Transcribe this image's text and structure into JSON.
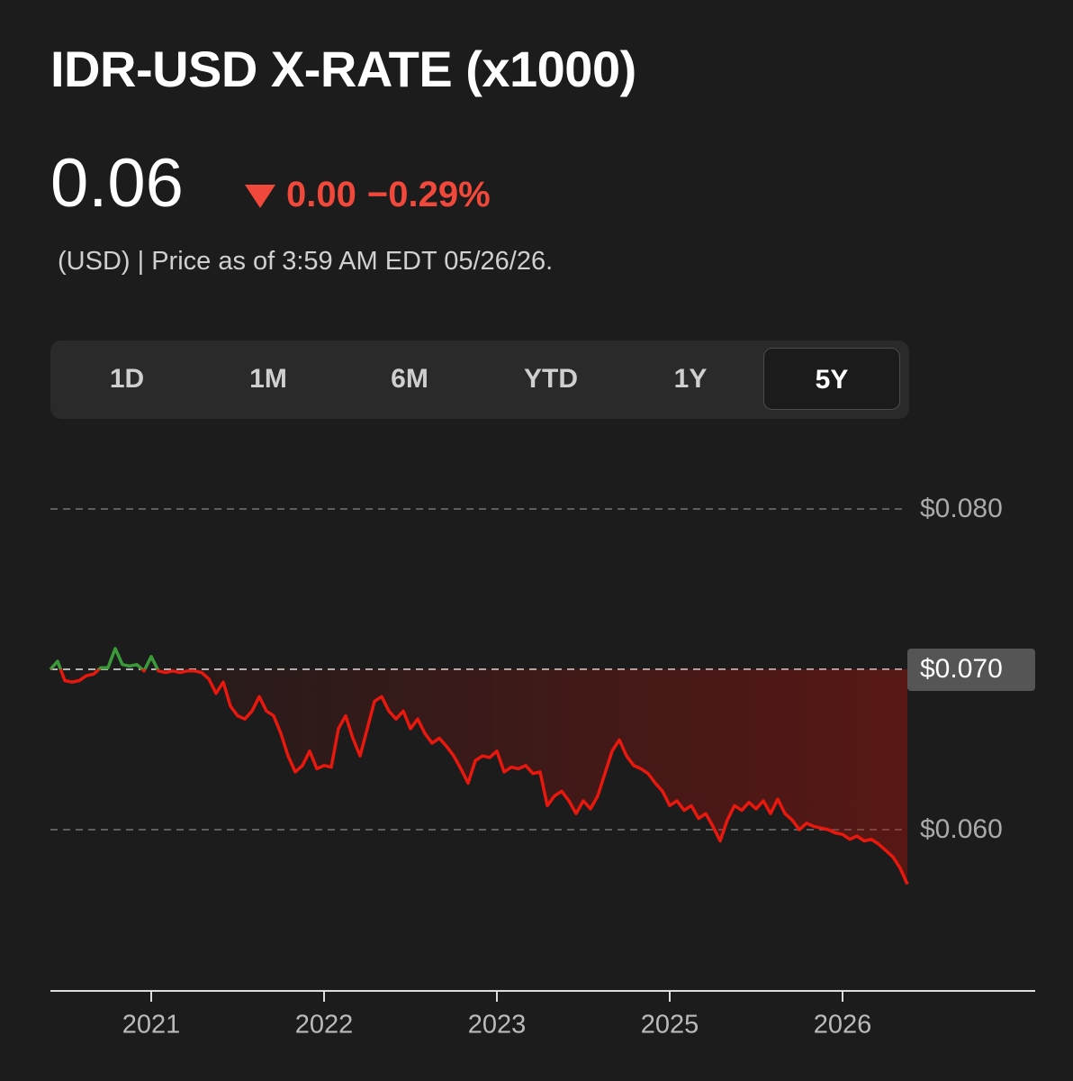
{
  "header": {
    "title": "IDR-USD X-RATE (x1000)",
    "price": "0.06",
    "change": "0.00",
    "change_pct": "−0.29%",
    "note": "(USD) | Price as of 3:59 AM EDT 05/26/26."
  },
  "tabs": [
    "1D",
    "1M",
    "6M",
    "YTD",
    "1Y",
    "5Y"
  ],
  "active_tab": "5Y",
  "chart_data": {
    "type": "line",
    "values": [
      0.07,
      0.0705,
      0.0693,
      0.0692,
      0.0693,
      0.0696,
      0.0697,
      0.0701,
      0.0701,
      0.0713,
      0.0703,
      0.0702,
      0.0703,
      0.0699,
      0.0708,
      0.0699,
      0.0698,
      0.0699,
      0.0698,
      0.0699,
      0.0699,
      0.0698,
      0.0694,
      0.0685,
      0.0692,
      0.0677,
      0.0671,
      0.0669,
      0.0674,
      0.0683,
      0.0674,
      0.0671,
      0.066,
      0.0646,
      0.0636,
      0.064,
      0.0649,
      0.0638,
      0.064,
      0.0639,
      0.0663,
      0.0671,
      0.0657,
      0.0646,
      0.0663,
      0.068,
      0.0683,
      0.0674,
      0.0669,
      0.0674,
      0.0663,
      0.0669,
      0.066,
      0.0654,
      0.0657,
      0.0652,
      0.0646,
      0.0638,
      0.0629,
      0.0643,
      0.0646,
      0.0645,
      0.0649,
      0.0636,
      0.0639,
      0.0638,
      0.064,
      0.0635,
      0.0636,
      0.0615,
      0.0621,
      0.0624,
      0.0618,
      0.061,
      0.0618,
      0.0613,
      0.0621,
      0.0635,
      0.0649,
      0.0656,
      0.0646,
      0.064,
      0.0638,
      0.0635,
      0.0629,
      0.0624,
      0.0615,
      0.0618,
      0.0612,
      0.0615,
      0.0607,
      0.061,
      0.0602,
      0.0593,
      0.0606,
      0.0615,
      0.0612,
      0.0617,
      0.0613,
      0.0618,
      0.061,
      0.0619,
      0.061,
      0.0606,
      0.06,
      0.0604,
      0.0602,
      0.0601,
      0.06,
      0.0598,
      0.0597,
      0.0594,
      0.0596,
      0.0593,
      0.0594,
      0.0591,
      0.0587,
      0.0583,
      0.0576,
      0.0566
    ],
    "baseline": 0.07,
    "up_color": "#3a9a3a",
    "down_color": "#e8180e",
    "xlim": [
      0,
      137
    ],
    "xticks": [
      {
        "value": 14,
        "label": "2021"
      },
      {
        "value": 38,
        "label": "2022"
      },
      {
        "value": 62,
        "label": "2023"
      },
      {
        "value": 86,
        "label": "2025"
      },
      {
        "value": 110,
        "label": "2026"
      }
    ],
    "ylim": [
      0.05,
      0.085
    ],
    "yticks": [
      {
        "value": 0.08,
        "label": "$0.080"
      },
      {
        "value": 0.07,
        "label": "$0.070"
      },
      {
        "value": 0.06,
        "label": "$0.060"
      }
    ],
    "grid": true
  }
}
